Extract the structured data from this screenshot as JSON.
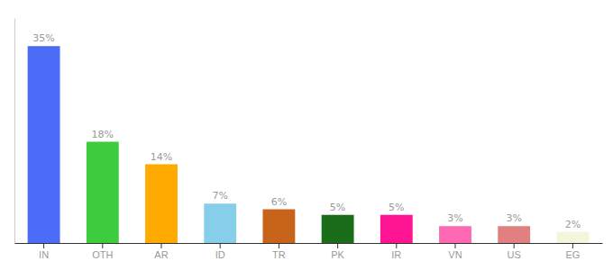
{
  "chart_data": {
    "type": "bar",
    "categories": [
      "IN",
      "OTH",
      "AR",
      "ID",
      "TR",
      "PK",
      "IR",
      "VN",
      "US",
      "EG"
    ],
    "values": [
      35,
      18,
      14,
      7,
      6,
      5,
      5,
      3,
      3,
      2
    ],
    "value_labels": [
      "35%",
      "18%",
      "14%",
      "7%",
      "6%",
      "5%",
      "5%",
      "3%",
      "3%",
      "2%"
    ],
    "colors": [
      "#4a6cf7",
      "#3ecc3e",
      "#ffaa00",
      "#87ceeb",
      "#c8641a",
      "#1a6e1a",
      "#ff1493",
      "#ff69b4",
      "#e08080",
      "#f5f5dc"
    ],
    "ylim": [
      0,
      40
    ],
    "data_labels": true,
    "tick_labels": "x",
    "grid": false
  }
}
